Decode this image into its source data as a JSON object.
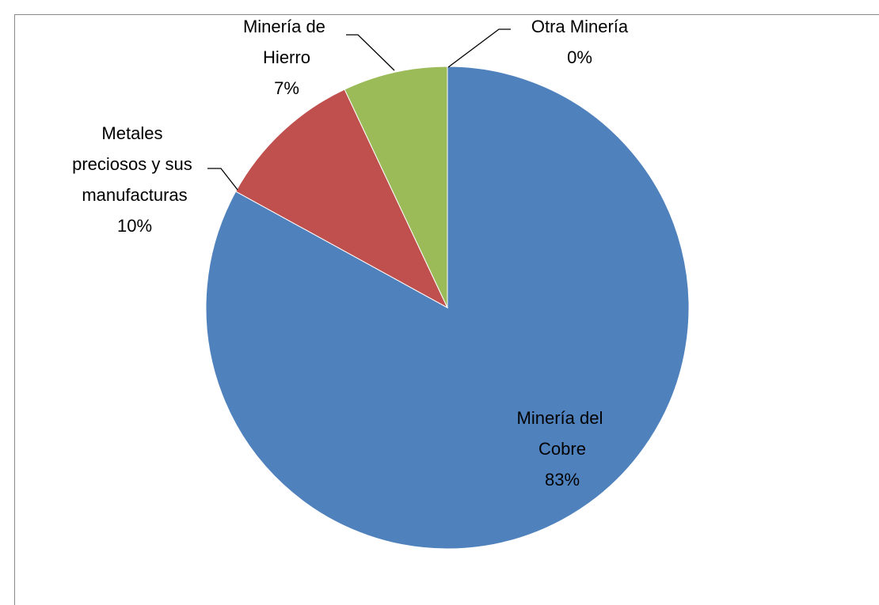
{
  "chart_data": {
    "type": "pie",
    "categories": [
      "Minería del Cobre",
      "Metales preciosos y sus manufacturas",
      "Minería de Hierro",
      "Otra Minería"
    ],
    "values": [
      83,
      10,
      7,
      0
    ],
    "value_labels": [
      "83%",
      "10%",
      "7%",
      "0%"
    ],
    "colors": [
      "#4f81bd",
      "#c0504d",
      "#9bbb59",
      "#8064a2"
    ]
  }
}
